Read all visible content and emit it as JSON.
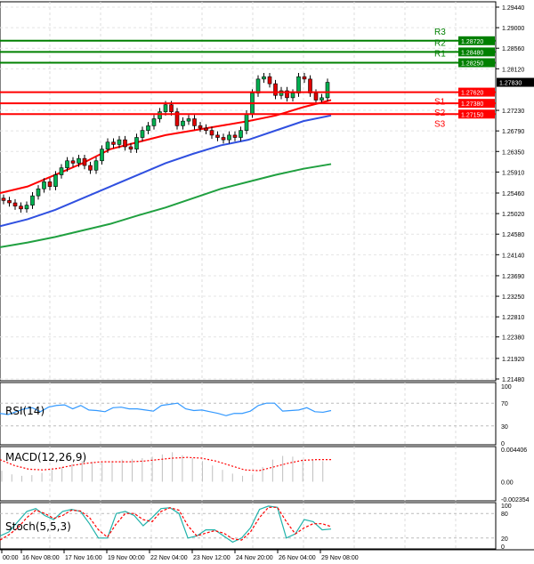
{
  "chart_data": [
    {
      "type": "candlestick",
      "panel": "price",
      "y_ticks": [
        "1.29440",
        "1.29000",
        "1.28560",
        "1.28120",
        "1.27230",
        "1.26790",
        "1.26350",
        "1.25910",
        "1.25460",
        "1.25020",
        "1.24580",
        "1.24140",
        "1.23690",
        "1.23250",
        "1.22810",
        "1.22380",
        "1.21920",
        "1.21480"
      ],
      "ylim": [
        1.2148,
        1.2944
      ],
      "last_price": "1.27830",
      "closes": [
        1.253,
        1.2525,
        1.2518,
        1.2512,
        1.252,
        1.254,
        1.2555,
        1.257,
        1.256,
        1.2585,
        1.26,
        1.2615,
        1.261,
        1.262,
        1.2605,
        1.2595,
        1.2615,
        1.264,
        1.2655,
        1.265,
        1.266,
        1.2645,
        1.264,
        1.2665,
        1.268,
        1.269,
        1.2705,
        1.272,
        1.2735,
        1.272,
        1.269,
        1.27,
        1.2705,
        1.269,
        1.2685,
        1.268,
        1.267,
        1.2665,
        1.266,
        1.267,
        1.2665,
        1.268,
        1.2715,
        1.276,
        1.279,
        1.2795,
        1.278,
        1.2755,
        1.2765,
        1.275,
        1.276,
        1.2795,
        1.279,
        1.276,
        1.2745,
        1.275,
        1.2783
      ],
      "moving_averages": [
        {
          "color": "#ff0000",
          "values": [
            1.2546,
            1.256,
            1.2585,
            1.261,
            1.264,
            1.2655,
            1.267,
            1.268,
            1.269,
            1.27,
            1.2712,
            1.273,
            1.2745
          ]
        },
        {
          "color": "#3050e0",
          "values": [
            1.2475,
            1.249,
            1.251,
            1.2535,
            1.256,
            1.2585,
            1.261,
            1.263,
            1.2648,
            1.266,
            1.268,
            1.27,
            1.2712
          ]
        },
        {
          "color": "#20a040",
          "values": [
            1.243,
            1.244,
            1.2452,
            1.2466,
            1.248,
            1.2498,
            1.2515,
            1.2535,
            1.2555,
            1.257,
            1.2585,
            1.2598,
            1.2608
          ]
        }
      ],
      "levels": [
        {
          "name": "R3",
          "value": "1.28720",
          "color": "#008000"
        },
        {
          "name": "R2",
          "value": "1.28480",
          "color": "#008000"
        },
        {
          "name": "R1",
          "value": "1.28250",
          "color": "#008000"
        },
        {
          "name": "S1",
          "value": "1.27620",
          "color": "#ff0000"
        },
        {
          "name": "S2",
          "value": "1.27380",
          "color": "#ff0000"
        },
        {
          "name": "S3",
          "value": "1.27150",
          "color": "#ff0000"
        }
      ]
    },
    {
      "type": "line",
      "panel": "rsi",
      "title": "RSI(14)",
      "y_ticks": [
        "100",
        "70",
        "30",
        "0"
      ],
      "ylim": [
        0,
        100
      ],
      "levels": [
        70,
        30
      ],
      "color": "#3399ff",
      "values": [
        52,
        50,
        55,
        60,
        62,
        55,
        63,
        66,
        67,
        60,
        66,
        58,
        57,
        55,
        62,
        63,
        60,
        60,
        58,
        56,
        66,
        68,
        70,
        60,
        57,
        58,
        55,
        52,
        48,
        52,
        52,
        56,
        66,
        70,
        70,
        56,
        57,
        58,
        62,
        55,
        54,
        57
      ]
    },
    {
      "type": "histogram+line",
      "panel": "macd",
      "title": "MACD(12,26,9)",
      "y_ticks": [
        "0.004406",
        "0.00",
        "-0.002354"
      ],
      "ylim": [
        -0.002354,
        0.004406
      ],
      "histogram": [
        0.0015,
        0.001,
        0.0008,
        0.0009,
        0.0012,
        0.0016,
        0.002,
        0.0024,
        0.0028,
        0.0027,
        0.0026,
        0.0028,
        0.003,
        0.0031,
        0.0032,
        0.0034,
        0.0037,
        0.004,
        0.0036,
        0.0032,
        0.0028,
        0.0022,
        0.0016,
        0.0011,
        0.0008,
        0.0009,
        0.002,
        0.003,
        0.0035,
        0.0034,
        0.003,
        0.0029,
        0.0028
      ],
      "signal": [
        0.003,
        0.0022,
        0.0017,
        0.0016,
        0.0018,
        0.0022,
        0.0025,
        0.0027,
        0.0027,
        0.0027,
        0.0028,
        0.003,
        0.0032,
        0.0033,
        0.0032,
        0.0028,
        0.0022,
        0.0016,
        0.0015,
        0.002,
        0.0025,
        0.0029,
        0.003,
        0.003
      ],
      "hist_color": "#c0c0c0",
      "signal_color": "#ff0000"
    },
    {
      "type": "line",
      "panel": "stoch",
      "title": "Stoch(5,5,3)",
      "y_ticks": [
        "100",
        "80",
        "20",
        "0"
      ],
      "ylim": [
        0,
        100
      ],
      "levels": [
        80,
        20
      ],
      "main": [
        25,
        35,
        60,
        85,
        92,
        75,
        65,
        85,
        90,
        85,
        55,
        20,
        20,
        80,
        85,
        75,
        50,
        70,
        92,
        94,
        80,
        20,
        25,
        40,
        40,
        25,
        10,
        20,
        45,
        90,
        98,
        95,
        20,
        30,
        65,
        60,
        40,
        42
      ],
      "signal": [
        15,
        28,
        45,
        70,
        88,
        80,
        68,
        75,
        88,
        86,
        70,
        40,
        22,
        55,
        80,
        80,
        65,
        60,
        85,
        94,
        88,
        50,
        25,
        32,
        38,
        32,
        18,
        15,
        35,
        70,
        95,
        95,
        60,
        30,
        45,
        55,
        55,
        48
      ],
      "main_color": "#20b2aa",
      "signal_color": "#ff0000"
    }
  ],
  "time_axis": [
    "00:00",
    "16 Nov 08:00",
    "17 Nov 16:00",
    "19 Nov 00:00",
    "22 Nov 04:00",
    "23 Nov 12:00",
    "24 Nov 20:00",
    "26 Nov 04:00",
    "29 Nov 08:00"
  ]
}
